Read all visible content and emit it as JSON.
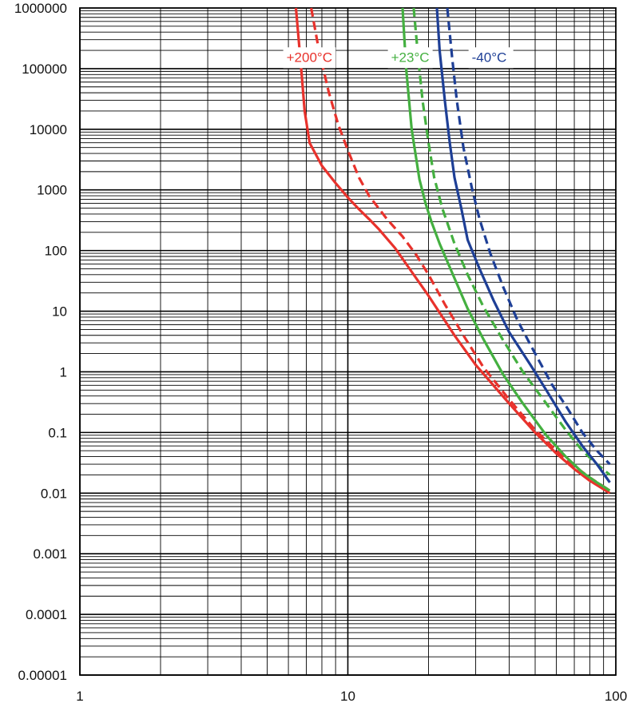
{
  "chart_data": {
    "type": "line",
    "title": "",
    "xlabel": "",
    "ylabel": "",
    "x_scale": "log",
    "y_scale": "log",
    "xlim": [
      1,
      100
    ],
    "ylim": [
      1e-05,
      1000000
    ],
    "grid": true,
    "x_ticks": [
      {
        "value": 1,
        "label": "1"
      },
      {
        "value": 10,
        "label": "10"
      },
      {
        "value": 100,
        "label": "100"
      }
    ],
    "y_ticks": [
      {
        "value": 1000000,
        "label": "1000000"
      },
      {
        "value": 100000,
        "label": "100000"
      },
      {
        "value": 10000,
        "label": "10000"
      },
      {
        "value": 1000,
        "label": "1000"
      },
      {
        "value": 100,
        "label": "100"
      },
      {
        "value": 10,
        "label": "10"
      },
      {
        "value": 1,
        "label": "1"
      },
      {
        "value": 0.1,
        "label": "0.1"
      },
      {
        "value": 0.01,
        "label": "0.01"
      },
      {
        "value": 0.001,
        "label": "0.001"
      },
      {
        "value": 0.0001,
        "label": "0.0001"
      },
      {
        "value": 1e-05,
        "label": "0.00001"
      }
    ],
    "annotations": [
      {
        "text": "+200°C",
        "color": "#e8322c",
        "x": 5.9,
        "y": 130000
      },
      {
        "text": "+23°C",
        "color": "#44b040",
        "x": 14.5,
        "y": 130000
      },
      {
        "text": "-40°C",
        "color": "#1e3f96",
        "x": 29,
        "y": 130000
      }
    ],
    "series": [
      {
        "color": "#e8322c",
        "dash": false,
        "x": [
          6.4,
          6.7,
          6.9,
          7.2,
          8.0,
          9.0,
          10.0,
          11.0,
          12.0,
          13.0,
          15.0,
          17.0,
          20.0,
          25.0,
          30.0,
          40.0,
          50.0,
          60.0,
          70.0,
          80.0,
          95.0
        ],
        "y": [
          1000000,
          100000,
          20000,
          6000,
          2500,
          1300,
          750,
          480,
          330,
          230,
          110,
          50,
          18,
          4,
          1.3,
          0.3,
          0.1,
          0.045,
          0.025,
          0.016,
          0.01
        ]
      },
      {
        "color": "#e8322c",
        "dash": true,
        "x": [
          7.3,
          7.8,
          8.5,
          9.2,
          10.0,
          11.0,
          12.0,
          14.0,
          16.0,
          18.0,
          20.0,
          23.0,
          27.0,
          32.0,
          40.0,
          50.0,
          60.0,
          70.0,
          80.0,
          95.0
        ],
        "y": [
          1000000,
          200000,
          40000,
          12000,
          4500,
          1600,
          800,
          330,
          170,
          85,
          40,
          13,
          4,
          1.2,
          0.35,
          0.11,
          0.05,
          0.028,
          0.018,
          0.011
        ]
      },
      {
        "color": "#44b040",
        "dash": false,
        "x": [
          16.0,
          16.5,
          17.3,
          18.5,
          19.5,
          20.5,
          22.0,
          25.0,
          28.0,
          32.0,
          38.0,
          45.0,
          55.0,
          65.0,
          75.0,
          85.0,
          95.0
        ],
        "y": [
          1000000,
          100000,
          10000,
          1500,
          600,
          300,
          130,
          35,
          11,
          3.5,
          0.9,
          0.3,
          0.09,
          0.04,
          0.022,
          0.015,
          0.011
        ]
      },
      {
        "color": "#44b040",
        "dash": true,
        "x": [
          17.6,
          18.3,
          19.0,
          20.0,
          21.0,
          22.5,
          25.0,
          28.0,
          32.0,
          38.0,
          45.0,
          55.0,
          65.0,
          75.0,
          85.0,
          95.0
        ],
        "y": [
          1000000,
          150000,
          30000,
          6000,
          1600,
          500,
          130,
          40,
          12,
          3.3,
          1.0,
          0.3,
          0.11,
          0.05,
          0.03,
          0.02
        ]
      },
      {
        "color": "#1e3f96",
        "dash": false,
        "x": [
          21.5,
          22.0,
          23.0,
          24.0,
          25.0,
          26.5,
          28.0,
          31.0,
          35.0,
          40.0,
          48.0,
          55.0,
          65.0,
          75.0,
          85.0,
          95.0
        ],
        "y": [
          1000000,
          200000,
          30000,
          6000,
          1600,
          500,
          150,
          50,
          15,
          4.5,
          1.3,
          0.5,
          0.15,
          0.06,
          0.03,
          0.015
        ]
      },
      {
        "color": "#1e3f96",
        "dash": true,
        "x": [
          23.5,
          24.5,
          25.5,
          27.0,
          29.0,
          31.0,
          34.0,
          38.0,
          43.0,
          50.0,
          58.0,
          66.0,
          75.0,
          85.0,
          95.0
        ],
        "y": [
          1000000,
          150000,
          30000,
          5000,
          1100,
          330,
          90,
          25,
          7,
          2.0,
          0.6,
          0.25,
          0.1,
          0.05,
          0.03
        ]
      }
    ]
  }
}
